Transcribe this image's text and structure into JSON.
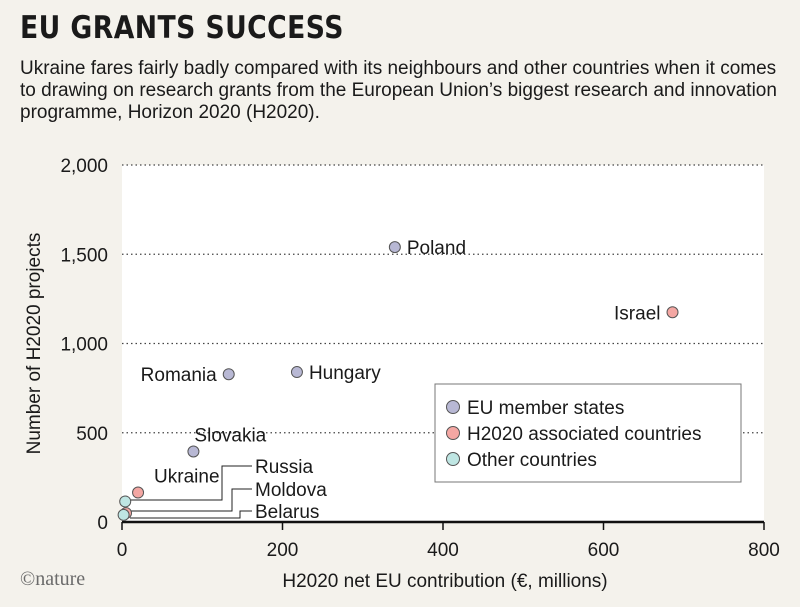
{
  "header": {
    "title": "EU GRANTS SUCCESS",
    "subtitle": "Ukraine fares fairly badly compared with its neighbours and other countries when it comes to drawing on research grants from the European Union’s biggest research and innovation programme, Horizon 2020 (H2020)."
  },
  "footer": {
    "logo_text": "©nature"
  },
  "chart_data": {
    "type": "scatter",
    "title": "EU GRANTS SUCCESS",
    "xlabel": "H2020 net EU contribution (€, millions)",
    "ylabel": "Number of H2020 projects",
    "xlim": [
      0,
      800
    ],
    "ylim": [
      0,
      2000
    ],
    "xticks": [
      0,
      200,
      400,
      600,
      800
    ],
    "xtick_labels": [
      "0",
      "200",
      "400",
      "600",
      "800"
    ],
    "yticks": [
      0,
      500,
      1000,
      1500,
      2000
    ],
    "ytick_labels": [
      "0",
      "500",
      "1,000",
      "1,500",
      "2,000"
    ],
    "grid": "horizontal-dotted",
    "legend_position": "bottom-right",
    "colors": {
      "eu": "#b8b8d4",
      "associated": "#f4a7a3",
      "other": "#bfe6e3",
      "stroke": "#555555",
      "plot_bg": "#ffffff"
    },
    "series": [
      {
        "name": "EU member states",
        "color_key": "eu",
        "points": [
          {
            "label": "Poland",
            "x": 340,
            "y": 1540
          },
          {
            "label": "Hungary",
            "x": 218,
            "y": 840
          },
          {
            "label": "Romania",
            "x": 133,
            "y": 828
          },
          {
            "label": "Slovakia",
            "x": 89,
            "y": 395
          }
        ]
      },
      {
        "name": "H2020 associated countries",
        "color_key": "associated",
        "points": [
          {
            "label": "Israel",
            "x": 686,
            "y": 1175
          },
          {
            "label": "Ukraine",
            "x": 20,
            "y": 165
          },
          {
            "label": "Moldova",
            "x": 5,
            "y": 50
          }
        ]
      },
      {
        "name": "Other countries",
        "color_key": "other",
        "points": [
          {
            "label": "Russia",
            "x": 4,
            "y": 115
          },
          {
            "label": "Belarus",
            "x": 2,
            "y": 40
          }
        ]
      }
    ]
  }
}
